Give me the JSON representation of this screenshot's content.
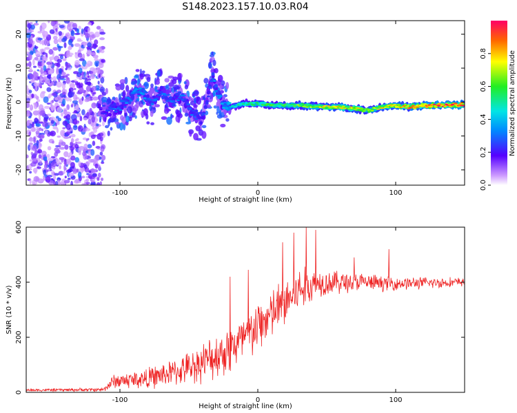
{
  "title": "S148.2023.157.10.03.R04",
  "chart_data": [
    {
      "type": "heatmap",
      "xlabel": "Height of straight line (km)",
      "ylabel": "Frequency (Hz)",
      "xlim": [
        -168,
        150
      ],
      "ylim": [
        -24.5,
        24
      ],
      "xticks": [
        -100,
        0,
        100
      ],
      "xtick_labels": [
        "-100",
        "0",
        "100"
      ],
      "yticks": [
        -20,
        -10,
        0,
        10,
        20
      ],
      "ytick_labels": [
        "-20",
        "-10",
        "0",
        "10",
        "20"
      ],
      "ridge": [
        {
          "x": -115,
          "f": -2.0,
          "a": 0.2
        },
        {
          "x": -108,
          "f": -2.5,
          "a": 0.25
        },
        {
          "x": -100,
          "f": -1.5,
          "a": 0.3
        },
        {
          "x": -92,
          "f": 1.5,
          "a": 0.35
        },
        {
          "x": -85,
          "f": 3.5,
          "a": 0.35
        },
        {
          "x": -78,
          "f": 0.0,
          "a": 0.3
        },
        {
          "x": -70,
          "f": 3.0,
          "a": 0.3
        },
        {
          "x": -62,
          "f": 0.0,
          "a": 0.3
        },
        {
          "x": -55,
          "f": 2.0,
          "a": 0.3
        },
        {
          "x": -48,
          "f": -3.0,
          "a": 0.3
        },
        {
          "x": -40,
          "f": -5.0,
          "a": 0.25
        },
        {
          "x": -33,
          "f": 8.0,
          "a": 0.3
        },
        {
          "x": -28,
          "f": 1.0,
          "a": 0.35
        },
        {
          "x": -22,
          "f": -2.0,
          "a": 0.4
        },
        {
          "x": -15,
          "f": -1.0,
          "a": 0.5
        },
        {
          "x": -8,
          "f": -0.5,
          "a": 0.55
        },
        {
          "x": 0,
          "f": -0.5,
          "a": 0.55
        },
        {
          "x": 10,
          "f": -0.8,
          "a": 0.6
        },
        {
          "x": 20,
          "f": -1.0,
          "a": 0.6
        },
        {
          "x": 30,
          "f": -1.0,
          "a": 0.65
        },
        {
          "x": 40,
          "f": -1.2,
          "a": 0.7
        },
        {
          "x": 50,
          "f": -1.5,
          "a": 0.75
        },
        {
          "x": 60,
          "f": -1.5,
          "a": 0.75
        },
        {
          "x": 70,
          "f": -1.8,
          "a": 0.75
        },
        {
          "x": 80,
          "f": -2.5,
          "a": 0.7
        },
        {
          "x": 90,
          "f": -1.5,
          "a": 0.75
        },
        {
          "x": 100,
          "f": -1.0,
          "a": 0.8
        },
        {
          "x": 110,
          "f": -1.5,
          "a": 0.85
        },
        {
          "x": 120,
          "f": -1.0,
          "a": 0.9
        },
        {
          "x": 130,
          "f": -1.0,
          "a": 0.95
        },
        {
          "x": 140,
          "f": -0.8,
          "a": 0.95
        },
        {
          "x": 148,
          "f": -0.8,
          "a": 0.95
        }
      ],
      "colorbar": {
        "label": "Normalized spectral amplitude",
        "range": [
          0.0,
          1.0
        ],
        "ticks": [
          0.0,
          0.2,
          0.4,
          0.6,
          0.8
        ],
        "tick_labels": [
          "0.0",
          "0.2",
          "0.4",
          "0.6",
          "0.8"
        ]
      }
    },
    {
      "type": "line",
      "xlabel": "Height of straight line (km)",
      "ylabel": "SNR (10 * v/v)",
      "xlim": [
        -168,
        150
      ],
      "ylim": [
        0,
        600
      ],
      "xticks": [
        -100,
        0,
        100
      ],
      "xtick_labels": [
        "-100",
        "0",
        "100"
      ],
      "yticks": [
        0,
        200,
        400,
        600
      ],
      "ytick_labels": [
        "0",
        "200",
        "400",
        "600"
      ],
      "series": [
        {
          "name": "SNR",
          "color": "#ee2222",
          "envelope": [
            {
              "x": -168,
              "base": 8,
              "noise": 6
            },
            {
              "x": -112,
              "base": 10,
              "noise": 8
            },
            {
              "x": -105,
              "base": 40,
              "noise": 30
            },
            {
              "x": -80,
              "base": 50,
              "noise": 45
            },
            {
              "x": -55,
              "base": 80,
              "noise": 60
            },
            {
              "x": -35,
              "base": 120,
              "noise": 90
            },
            {
              "x": -20,
              "base": 160,
              "noise": 110
            },
            {
              "x": -8,
              "base": 200,
              "noise": 110
            },
            {
              "x": 5,
              "base": 260,
              "noise": 110
            },
            {
              "x": 18,
              "base": 320,
              "noise": 110
            },
            {
              "x": 30,
              "base": 370,
              "noise": 100
            },
            {
              "x": 45,
              "base": 400,
              "noise": 60
            },
            {
              "x": 75,
              "base": 400,
              "noise": 40
            },
            {
              "x": 95,
              "base": 395,
              "noise": 30
            },
            {
              "x": 150,
              "base": 400,
              "noise": 20
            }
          ],
          "spikes": [
            {
              "x": -20,
              "y": 420
            },
            {
              "x": -7,
              "y": 445
            },
            {
              "x": 18,
              "y": 545
            },
            {
              "x": 26,
              "y": 580
            },
            {
              "x": 35,
              "y": 600
            },
            {
              "x": 42,
              "y": 590
            },
            {
              "x": 70,
              "y": 490
            },
            {
              "x": 95,
              "y": 520
            }
          ]
        }
      ]
    }
  ]
}
